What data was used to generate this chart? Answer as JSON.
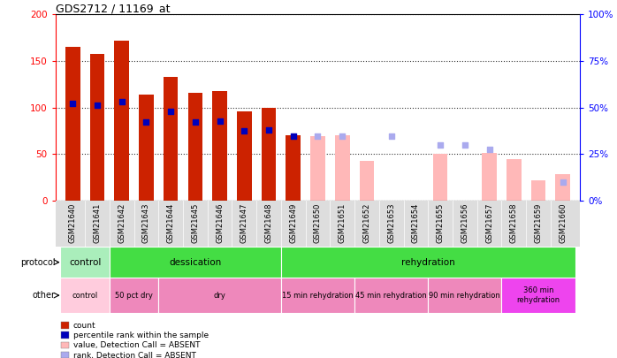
{
  "title": "GDS2712 / 11169_at",
  "samples": [
    "GSM21640",
    "GSM21641",
    "GSM21642",
    "GSM21643",
    "GSM21644",
    "GSM21645",
    "GSM21646",
    "GSM21647",
    "GSM21648",
    "GSM21649",
    "GSM21650",
    "GSM21651",
    "GSM21652",
    "GSM21653",
    "GSM21654",
    "GSM21655",
    "GSM21656",
    "GSM21657",
    "GSM21658",
    "GSM21659",
    "GSM21660"
  ],
  "count_present": [
    165,
    157,
    172,
    114,
    133,
    116,
    118,
    96,
    100,
    70,
    null,
    null,
    null,
    null,
    null,
    null,
    null,
    null,
    null,
    null,
    null
  ],
  "rank_present": [
    104,
    102,
    106,
    84,
    96,
    84,
    85,
    75,
    76,
    69,
    null,
    null,
    null,
    null,
    null,
    null,
    null,
    null,
    null,
    null,
    null
  ],
  "count_absent": [
    null,
    null,
    null,
    null,
    null,
    null,
    null,
    null,
    null,
    null,
    69,
    70,
    43,
    null,
    null,
    50,
    null,
    51,
    44,
    22,
    28
  ],
  "rank_absent": [
    null,
    null,
    null,
    null,
    null,
    null,
    null,
    null,
    null,
    null,
    69,
    69,
    null,
    69,
    null,
    60,
    60,
    55,
    null,
    null,
    20
  ],
  "ylim_left": [
    0,
    200
  ],
  "yticks_left": [
    0,
    50,
    100,
    150,
    200
  ],
  "ytick_labels_right": [
    "0%",
    "25%",
    "50%",
    "75%",
    "100%"
  ],
  "yticks_right": [
    0,
    25,
    50,
    75,
    100
  ],
  "bar_color_present": "#CC2200",
  "bar_color_absent": "#FFB8B8",
  "rank_color_present": "#0000BB",
  "rank_color_absent": "#AAAAEE",
  "protocol_groups": [
    {
      "label": "control",
      "start": 0,
      "end": 2,
      "color": "#AAEEBB"
    },
    {
      "label": "dessication",
      "start": 2,
      "end": 9,
      "color": "#44DD44"
    },
    {
      "label": "rehydration",
      "start": 9,
      "end": 21,
      "color": "#44DD44"
    }
  ],
  "other_groups": [
    {
      "label": "control",
      "start": 0,
      "end": 2,
      "color": "#FFCCDD"
    },
    {
      "label": "50 pct dry",
      "start": 2,
      "end": 4,
      "color": "#EE88BB"
    },
    {
      "label": "dry",
      "start": 4,
      "end": 9,
      "color": "#EE88BB"
    },
    {
      "label": "15 min rehydration",
      "start": 9,
      "end": 12,
      "color": "#EE88BB"
    },
    {
      "label": "45 min rehydration",
      "start": 12,
      "end": 15,
      "color": "#EE88BB"
    },
    {
      "label": "90 min rehydration",
      "start": 15,
      "end": 18,
      "color": "#EE88BB"
    },
    {
      "label": "360 min\nrehydration",
      "start": 18,
      "end": 21,
      "color": "#EE44EE"
    }
  ],
  "legend": [
    {
      "label": "count",
      "color": "#CC2200"
    },
    {
      "label": "percentile rank within the sample",
      "color": "#0000BB"
    },
    {
      "label": "value, Detection Call = ABSENT",
      "color": "#FFB8B8"
    },
    {
      "label": "rank, Detection Call = ABSENT",
      "color": "#AAAAEE"
    }
  ]
}
